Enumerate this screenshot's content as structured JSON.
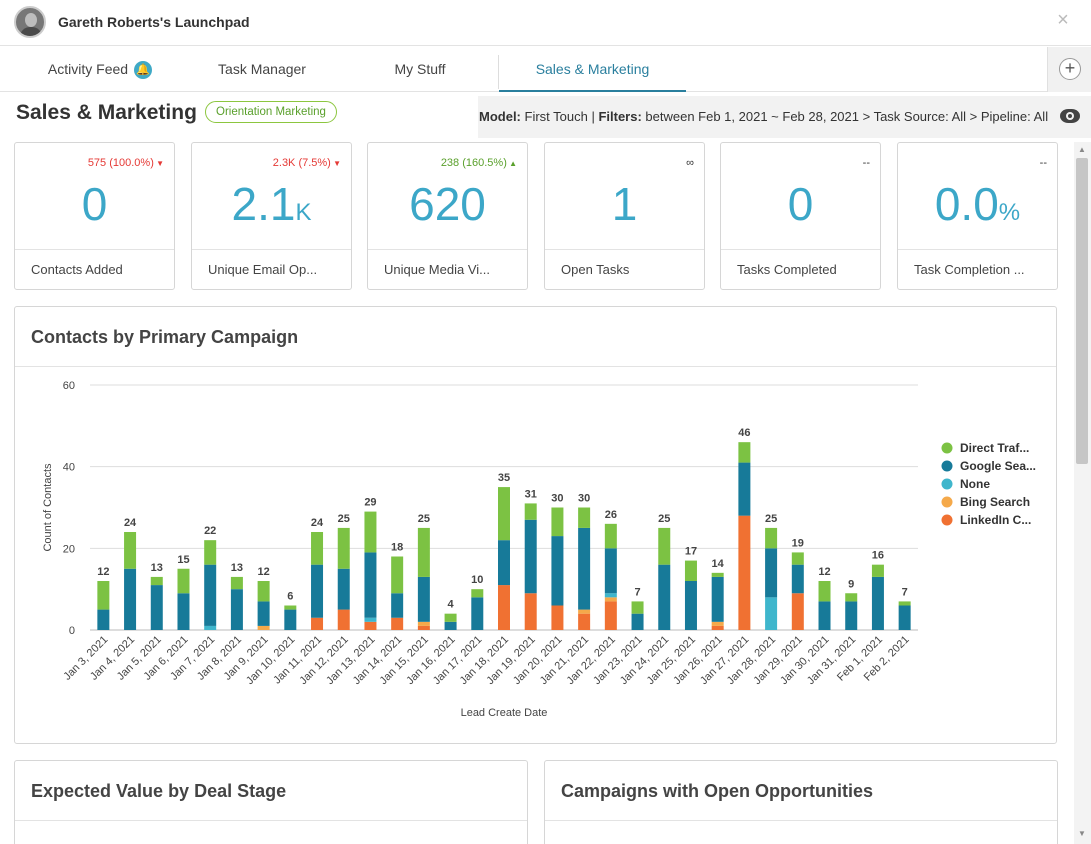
{
  "header": {
    "title": "Gareth Roberts's Launchpad",
    "close_label": "×"
  },
  "tabs": [
    {
      "label": "Activity Feed",
      "badge_icon": "bell-icon"
    },
    {
      "label": "Task Manager"
    },
    {
      "label": "My Stuff"
    },
    {
      "label": "Sales & Marketing",
      "active": true
    }
  ],
  "add_label": "+",
  "page": {
    "title": "Sales & Marketing",
    "pill": "Orientation Marketing"
  },
  "filters": {
    "model_label": "Model:",
    "model_value": " First Touch | ",
    "filters_label": "Filters:",
    "filters_value": " between Feb 1, 2021 ~ Feb 28, 2021 > Task Source: All > Pipeline: All"
  },
  "kpis": [
    {
      "delta": "575 (100.0%)",
      "dir": "down",
      "value": "0",
      "suffix": "",
      "label": "Contacts Added"
    },
    {
      "delta": "2.3K (7.5%)",
      "dir": "down",
      "value": "2.1",
      "suffix": "K",
      "label": "Unique Email Op..."
    },
    {
      "delta": "238 (160.5%)",
      "dir": "up",
      "value": "620",
      "suffix": "",
      "label": "Unique Media Vi..."
    },
    {
      "delta": "∞",
      "dir": "none",
      "value": "1",
      "suffix": "",
      "label": "Open Tasks"
    },
    {
      "delta": "--",
      "dir": "none",
      "value": "0",
      "suffix": "",
      "label": "Tasks Completed"
    },
    {
      "delta": "--",
      "dir": "none",
      "value": "0.0",
      "suffix": "%",
      "label": "Task Completion ..."
    }
  ],
  "cards": {
    "chart_title": "Contacts by Primary Campaign",
    "expected_value_title": "Expected Value by Deal Stage",
    "campaigns_title": "Campaigns with Open Opportunities"
  },
  "chart_data": {
    "type": "bar",
    "stacked": true,
    "xlabel": "Lead Create Date",
    "ylabel": "Count of Contacts",
    "ylim": [
      0,
      60
    ],
    "yticks": [
      0,
      20,
      40,
      60
    ],
    "grid": true,
    "legend_position": "right",
    "categories": [
      "Jan 3, 2021",
      "Jan 4, 2021",
      "Jan 5, 2021",
      "Jan 6, 2021",
      "Jan 7, 2021",
      "Jan 8, 2021",
      "Jan 9, 2021",
      "Jan 10, 2021",
      "Jan 11, 2021",
      "Jan 12, 2021",
      "Jan 13, 2021",
      "Jan 14, 2021",
      "Jan 15, 2021",
      "Jan 16, 2021",
      "Jan 17, 2021",
      "Jan 18, 2021",
      "Jan 19, 2021",
      "Jan 20, 2021",
      "Jan 21, 2021",
      "Jan 22, 2021",
      "Jan 23, 2021",
      "Jan 24, 2021",
      "Jan 25, 2021",
      "Jan 26, 2021",
      "Jan 27, 2021",
      "Jan 28, 2021",
      "Jan 29, 2021",
      "Jan 30, 2021",
      "Jan 31, 2021",
      "Feb 1, 2021",
      "Feb 2, 2021"
    ],
    "totals": [
      12,
      24,
      13,
      15,
      22,
      13,
      12,
      6,
      24,
      25,
      29,
      18,
      25,
      4,
      10,
      35,
      31,
      30,
      30,
      26,
      7,
      25,
      17,
      14,
      46,
      25,
      19,
      12,
      9,
      16,
      7
    ],
    "series": [
      {
        "name": "LinkedIn C...",
        "color": "#f07132",
        "values": [
          0,
          0,
          0,
          0,
          0,
          0,
          0,
          0,
          3,
          5,
          2,
          3,
          1,
          0,
          0,
          11,
          9,
          6,
          4,
          7,
          0,
          0,
          0,
          1,
          28,
          0,
          9,
          0,
          0,
          0,
          0
        ]
      },
      {
        "name": "Bing Search",
        "color": "#f5a94a",
        "values": [
          0,
          0,
          0,
          0,
          0,
          0,
          1,
          0,
          0,
          0,
          0,
          0,
          1,
          0,
          0,
          0,
          0,
          0,
          1,
          1,
          0,
          0,
          0,
          1,
          0,
          0,
          0,
          0,
          0,
          0,
          0
        ]
      },
      {
        "name": "None",
        "color": "#3fb6cc",
        "values": [
          0,
          0,
          0,
          0,
          1,
          0,
          0,
          0,
          0,
          0,
          1,
          0,
          0,
          0,
          0,
          0,
          0,
          0,
          0,
          1,
          0,
          0,
          0,
          0,
          0,
          8,
          0,
          0,
          0,
          0,
          0
        ]
      },
      {
        "name": "Google Sea...",
        "color": "#177a99",
        "values": [
          5,
          15,
          11,
          9,
          15,
          10,
          6,
          5,
          13,
          10,
          16,
          6,
          11,
          2,
          8,
          11,
          18,
          17,
          20,
          11,
          4,
          16,
          12,
          11,
          13,
          12,
          7,
          7,
          7,
          13,
          6
        ]
      },
      {
        "name": "Direct Traf...",
        "color": "#7cc243",
        "values": [
          7,
          9,
          2,
          6,
          6,
          3,
          5,
          1,
          8,
          10,
          10,
          9,
          12,
          2,
          2,
          13,
          4,
          7,
          5,
          6,
          3,
          9,
          5,
          1,
          5,
          5,
          3,
          5,
          2,
          3,
          1
        ]
      }
    ],
    "legend_order": [
      "Direct Traf...",
      "Google Sea...",
      "None",
      "Bing Search",
      "LinkedIn C..."
    ]
  },
  "scrollbar": {
    "up": "▲",
    "down": "▼"
  }
}
